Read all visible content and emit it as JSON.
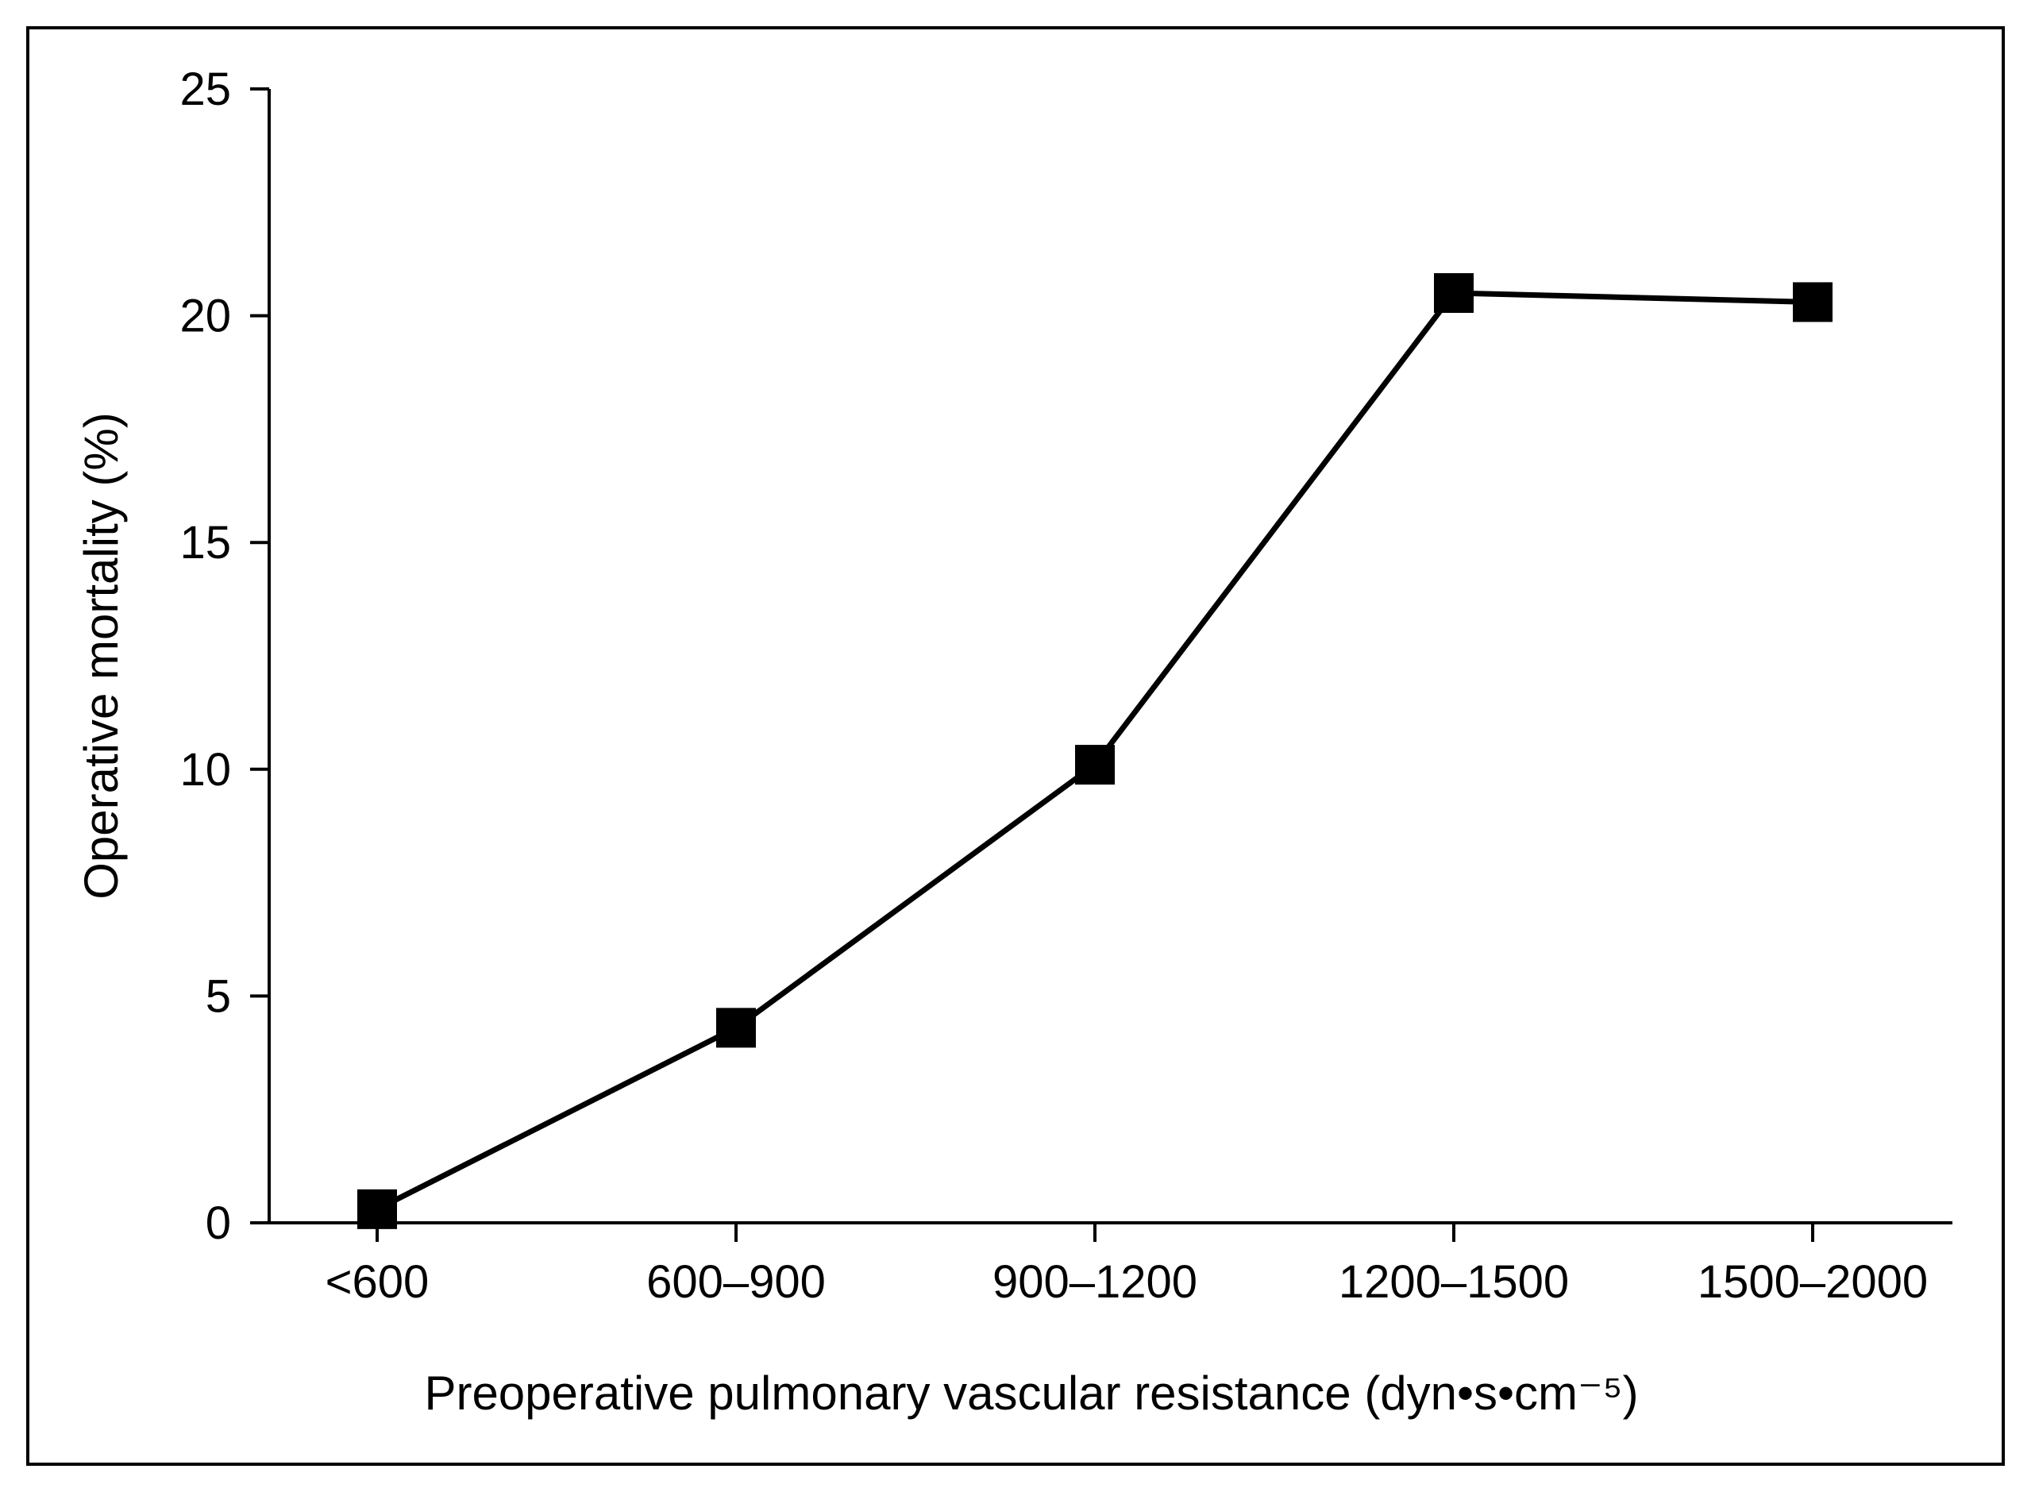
{
  "chart_data": {
    "type": "line",
    "title": "",
    "xlabel": "Preoperative pulmonary vascular resistance (dyn•s•cm⁻⁵)",
    "ylabel": "Operative mortality (%)",
    "categories": [
      "<600",
      "600–900",
      "900–1200",
      "1200–1500",
      "1500–2000"
    ],
    "series": [
      {
        "values": [
          0.3,
          4.3,
          10.1,
          20.5,
          20.3
        ],
        "color": "#000000",
        "marker": "square"
      }
    ],
    "ylim": [
      0,
      25
    ],
    "yticks": [
      0,
      5,
      10,
      15,
      20,
      25
    ],
    "grid": false,
    "legend": "none"
  }
}
